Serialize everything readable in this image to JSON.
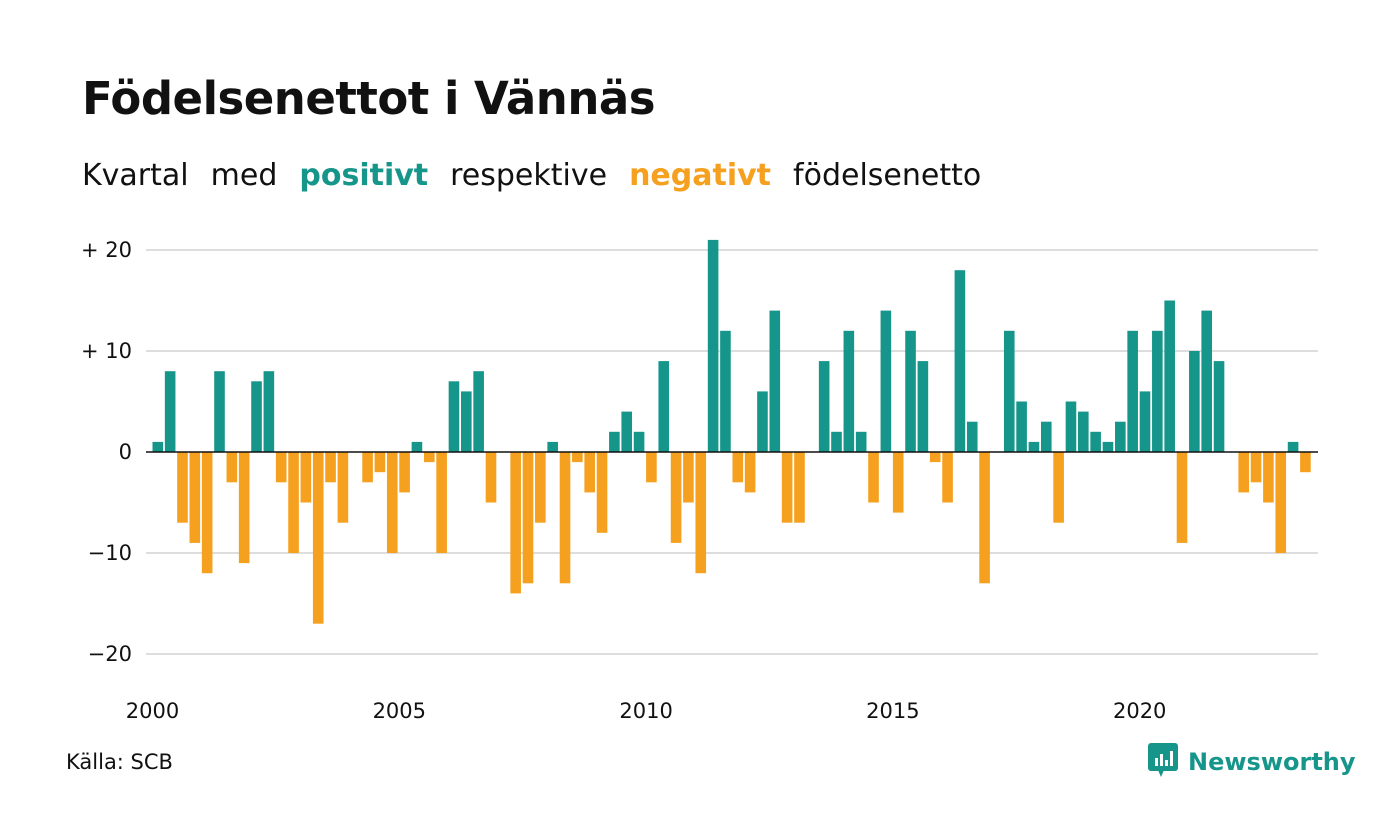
{
  "title": "Födelsenettot i Vännäs",
  "subtitle": {
    "w1": "Kvartal",
    "w2": "med",
    "positive": "positivt",
    "w3": "respektive",
    "negative": "negativt",
    "w4": "födelsenetto"
  },
  "colors": {
    "positive": "#16968a",
    "negative": "#f5a01e",
    "grid": "#dddddd",
    "zero_line": "#111111"
  },
  "source": "Källa: SCB",
  "brand": {
    "name": "Newsworthy",
    "icon": "newsworthy-logo-icon"
  },
  "chart_data": {
    "type": "bar",
    "title": "Födelsenettot i Vännäs",
    "x_start": "2000 Q1",
    "x_step": "quarter",
    "xlabel": "",
    "ylabel": "",
    "ylim": [
      -23,
      21
    ],
    "yticks": [
      {
        "value": 20,
        "label": "+ 20"
      },
      {
        "value": 10,
        "label": "+ 10"
      },
      {
        "value": 0,
        "label": "0"
      },
      {
        "value": -10,
        "label": "−10"
      },
      {
        "value": -20,
        "label": "−20"
      }
    ],
    "xticks": [
      {
        "label": "2000",
        "at": 0
      },
      {
        "label": "2005",
        "at": 20
      },
      {
        "label": "2010",
        "at": 40
      },
      {
        "label": "2015",
        "at": 60
      },
      {
        "label": "2020",
        "at": 80
      }
    ],
    "grid": true,
    "values": [
      1,
      8,
      -7,
      -9,
      -12,
      8,
      -3,
      -11,
      7,
      8,
      -3,
      -10,
      -5,
      -17,
      -3,
      -7,
      0,
      -3,
      -2,
      -10,
      -4,
      1,
      -1,
      -10,
      7,
      6,
      8,
      -5,
      0,
      -14,
      -13,
      -7,
      1,
      -13,
      -1,
      -4,
      -8,
      2,
      4,
      2,
      -3,
      9,
      -9,
      -5,
      -12,
      21,
      12,
      -3,
      -4,
      6,
      14,
      -7,
      -7,
      0,
      9,
      2,
      12,
      2,
      -5,
      14,
      -6,
      12,
      9,
      -1,
      -5,
      18,
      3,
      -13,
      0,
      12,
      5,
      1,
      3,
      -7,
      5,
      4,
      2,
      1,
      3,
      12,
      6,
      12,
      15,
      -9,
      10,
      14,
      9,
      0,
      -4,
      -3,
      -5,
      -10,
      1,
      -2
    ]
  }
}
